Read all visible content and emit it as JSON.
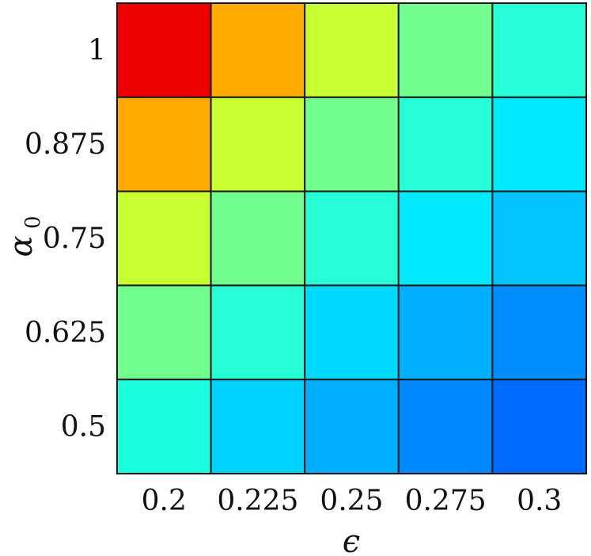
{
  "chart_data": {
    "type": "heatmap",
    "xlabel": "ϵ",
    "ylabel": "α",
    "ylabel_subscript": "0",
    "x_categories": [
      "0.2",
      "0.225",
      "0.25",
      "0.275",
      "0.3"
    ],
    "y_categories": [
      "1",
      "0.875",
      "0.75",
      "0.625",
      "0.5"
    ],
    "cells": [
      [
        "#ef0000",
        "#ffaa00",
        "#c7ff30",
        "#71ff8e",
        "#26ffd6"
      ],
      [
        "#ffaa00",
        "#c7ff30",
        "#71ff8e",
        "#26ffd6",
        "#00eaff"
      ],
      [
        "#c7ff30",
        "#71ff8e",
        "#26ffd6",
        "#00eaff",
        "#00c3ff"
      ],
      [
        "#71ff8e",
        "#26ffd6",
        "#00daff",
        "#00b0ff",
        "#008eff"
      ],
      [
        "#1affe0",
        "#00d3ff",
        "#00b0ff",
        "#0088ff",
        "#006cff"
      ]
    ],
    "colorscale": "jet"
  }
}
